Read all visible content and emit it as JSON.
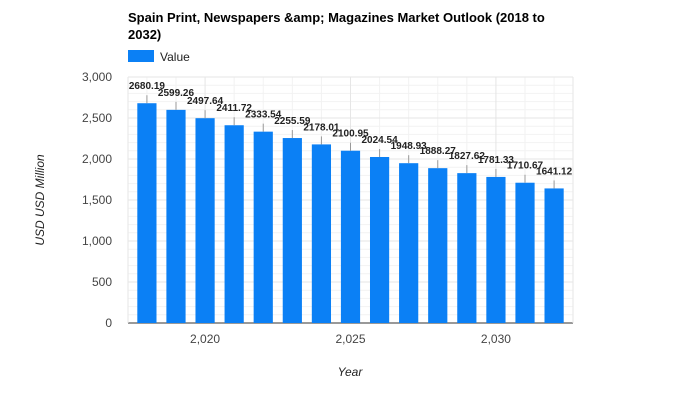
{
  "chart_data": {
    "type": "bar",
    "title_lines": [
      "Spain Print, Newspapers &amp; Magazines Market Outlook (2018 to",
      "2032)"
    ],
    "xlabel": "Year",
    "ylabel": "USD USD Million",
    "x": [
      2018,
      2019,
      2020,
      2021,
      2022,
      2023,
      2024,
      2025,
      2026,
      2027,
      2028,
      2029,
      2030,
      2031,
      2032
    ],
    "series": [
      {
        "name": "Value",
        "color": "#0b80f5",
        "values": [
          2680.19,
          2599.26,
          2497.64,
          2411.72,
          2333.54,
          2255.59,
          2178.01,
          2100.95,
          2024.54,
          1948.93,
          1888.27,
          1827.62,
          1781.33,
          1710.67,
          1641.12
        ],
        "labels": [
          "2680.19",
          "2599.26",
          "2497.64",
          "2411.72",
          "2333.54",
          "2255.59",
          "2178.01",
          "2100.95",
          "2024.54",
          "1948.93",
          "1888.27",
          "1827.62",
          "1781.33",
          "1710.67",
          "1641.12"
        ]
      }
    ],
    "ylim": [
      0,
      3000
    ],
    "yticks": [
      0,
      500,
      1000,
      1500,
      2000,
      2500,
      3000
    ],
    "ytick_labels": [
      "0",
      "500",
      "1,000",
      "1,500",
      "2,000",
      "2,500",
      "3,000"
    ],
    "xticks": [
      2020,
      2025,
      2030
    ],
    "xtick_labels": [
      "2,020",
      "2,025",
      "2,030"
    ],
    "xlim": [
      2017.35,
      2032.65
    ],
    "grid": true,
    "legend_position": "top-left"
  }
}
